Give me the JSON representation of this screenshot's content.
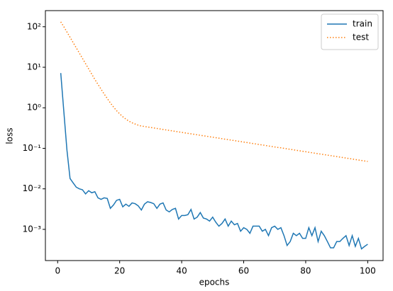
{
  "chart_data": {
    "type": "line",
    "xlabel": "epochs",
    "ylabel": "loss",
    "yscale": "log",
    "legend": "upper right",
    "xlim": [
      -3.95,
      104.95
    ],
    "ylim": [
      0.00017,
      250
    ],
    "xticks": [
      0,
      20,
      40,
      60,
      80,
      100
    ],
    "yticks": [
      {
        "value": 0.001,
        "label": "10⁻³"
      },
      {
        "value": 0.01,
        "label": "10⁻²"
      },
      {
        "value": 0.1,
        "label": "10⁻¹"
      },
      {
        "value": 1,
        "label": "10⁰"
      },
      {
        "value": 10,
        "label": "10¹"
      },
      {
        "value": 100,
        "label": "10²"
      }
    ],
    "x": [
      1,
      2,
      3,
      4,
      5,
      6,
      7,
      8,
      9,
      10,
      11,
      12,
      13,
      14,
      15,
      16,
      17,
      18,
      19,
      20,
      21,
      22,
      23,
      24,
      25,
      26,
      27,
      28,
      29,
      30,
      31,
      32,
      33,
      34,
      35,
      36,
      37,
      38,
      39,
      40,
      41,
      42,
      43,
      44,
      45,
      46,
      47,
      48,
      49,
      50,
      51,
      52,
      53,
      54,
      55,
      56,
      57,
      58,
      59,
      60,
      61,
      62,
      63,
      64,
      65,
      66,
      67,
      68,
      69,
      70,
      71,
      72,
      73,
      74,
      75,
      76,
      77,
      78,
      79,
      80,
      81,
      82,
      83,
      84,
      85,
      86,
      87,
      88,
      89,
      90,
      91,
      92,
      93,
      94,
      95,
      96,
      97,
      98,
      99,
      100
    ],
    "series": [
      {
        "name": "train",
        "color": "#1f77b4",
        "linestyle": "solid",
        "values": [
          7.2,
          0.8,
          0.09,
          0.018,
          0.014,
          0.011,
          0.01,
          0.0095,
          0.0075,
          0.009,
          0.008,
          0.0085,
          0.006,
          0.0055,
          0.006,
          0.0058,
          0.0033,
          0.004,
          0.0052,
          0.0055,
          0.0036,
          0.0042,
          0.0037,
          0.0045,
          0.0043,
          0.0038,
          0.003,
          0.0042,
          0.0048,
          0.0046,
          0.0043,
          0.0033,
          0.0042,
          0.0045,
          0.003,
          0.0027,
          0.0031,
          0.0033,
          0.0018,
          0.0022,
          0.0022,
          0.0023,
          0.0031,
          0.0018,
          0.002,
          0.0026,
          0.0019,
          0.0018,
          0.0016,
          0.002,
          0.0015,
          0.0012,
          0.0014,
          0.0018,
          0.0012,
          0.0016,
          0.0013,
          0.0014,
          0.0009,
          0.0011,
          0.001,
          0.0008,
          0.0012,
          0.0012,
          0.0012,
          0.0009,
          0.001,
          0.0007,
          0.0011,
          0.0012,
          0.001,
          0.0011,
          0.0007,
          0.0004,
          0.0005,
          0.0008,
          0.0007,
          0.0008,
          0.0006,
          0.0006,
          0.0011,
          0.0007,
          0.0011,
          0.0005,
          0.0009,
          0.0007,
          0.0005,
          0.00035,
          0.00035,
          0.0005,
          0.0005,
          0.0006,
          0.0007,
          0.0004,
          0.0007,
          0.00038,
          0.0006,
          0.00033,
          0.00038,
          0.00043
        ]
      },
      {
        "name": "test",
        "color": "#ff7f0e",
        "linestyle": "dotted",
        "values": [
          132,
          100,
          74.1,
          55.0,
          40.7,
          30.2,
          22.4,
          16.6,
          12.3,
          9.12,
          6.76,
          5.01,
          3.8,
          2.88,
          2.19,
          1.7,
          1.32,
          1.05,
          0.851,
          0.708,
          0.603,
          0.525,
          0.468,
          0.427,
          0.398,
          0.372,
          0.355,
          0.345,
          0.336,
          0.327,
          0.318,
          0.309,
          0.301,
          0.292,
          0.284,
          0.277,
          0.269,
          0.262,
          0.255,
          0.248,
          0.241,
          0.234,
          0.228,
          0.222,
          0.216,
          0.21,
          0.204,
          0.199,
          0.193,
          0.188,
          0.183,
          0.178,
          0.173,
          0.168,
          0.164,
          0.159,
          0.155,
          0.151,
          0.147,
          0.143,
          0.139,
          0.135,
          0.131,
          0.128,
          0.124,
          0.121,
          0.118,
          0.114,
          0.111,
          0.108,
          0.105,
          0.103,
          0.1,
          0.0972,
          0.0946,
          0.092,
          0.0895,
          0.0871,
          0.0847,
          0.0824,
          0.0801,
          0.0779,
          0.0758,
          0.0737,
          0.0717,
          0.0698,
          0.0679,
          0.066,
          0.0642,
          0.0625,
          0.0608,
          0.0591,
          0.0575,
          0.0559,
          0.0544,
          0.0529,
          0.0515,
          0.0501,
          0.0487,
          0.0474
        ]
      }
    ]
  }
}
